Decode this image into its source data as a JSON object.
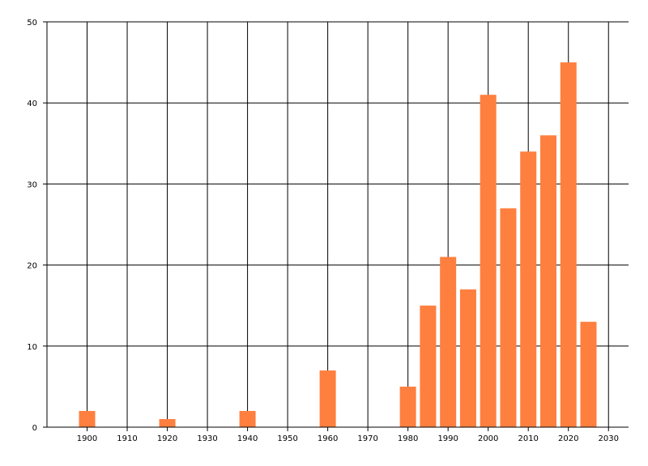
{
  "chart_data": {
    "type": "bar",
    "title": "",
    "xlabel": "",
    "ylabel": "",
    "xlim": [
      1890,
      2035
    ],
    "ylim": [
      0,
      50
    ],
    "grid": true,
    "bar_color": "#ff7f3f",
    "x_ticks": [
      "1900",
      "1910",
      "1920",
      "1930",
      "1940",
      "1950",
      "1960",
      "1970",
      "1980",
      "1990",
      "2000",
      "2010",
      "2020",
      "2030"
    ],
    "y_ticks": [
      "0",
      "10",
      "20",
      "30",
      "40",
      "50"
    ],
    "x": [
      1900,
      1920,
      1940,
      1960,
      1980,
      1985,
      1990,
      1995,
      2000,
      2005,
      2010,
      2015,
      2020,
      2025
    ],
    "values": [
      2,
      1,
      2,
      7,
      5,
      15,
      21,
      17,
      41,
      27,
      34,
      36,
      45,
      13
    ]
  }
}
